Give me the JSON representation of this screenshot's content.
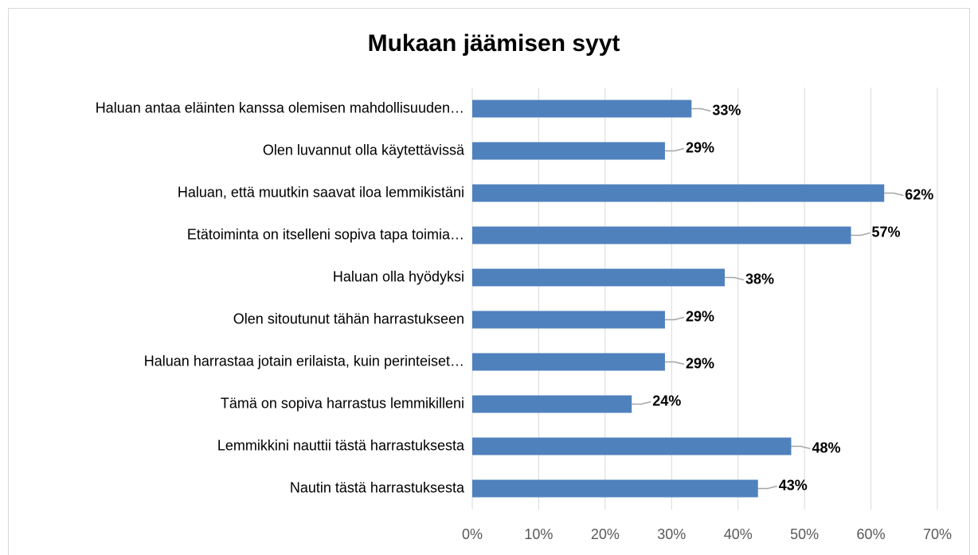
{
  "chart_data": {
    "type": "bar",
    "orientation": "horizontal",
    "title": "Mukaan jäämisen syyt",
    "categories": [
      "Haluan antaa eläinten kanssa olemisen mahdollisuuden…",
      "Olen luvannut olla käytettävissä",
      "Haluan, että muutkin saavat iloa lemmikistäni",
      "Etätoiminta on itselleni sopiva tapa toimia…",
      "Haluan olla hyödyksi",
      "Olen sitoutunut tähän harrastukseen",
      "Haluan harrastaa jotain erilaista, kuin perinteiset…",
      "Tämä on sopiva harrastus lemmikilleni",
      "Lemmikkini nauttii tästä harrastuksesta",
      "Nautin tästä harrastuksesta"
    ],
    "values": [
      33,
      29,
      62,
      57,
      38,
      29,
      29,
      24,
      48,
      43
    ],
    "value_labels": [
      "33%",
      "29%",
      "62%",
      "57%",
      "38%",
      "29%",
      "29%",
      "24%",
      "48%",
      "43%"
    ],
    "color": "#4f81bd",
    "xlim": [
      0,
      70
    ],
    "xticks": [
      {
        "value": 0,
        "label": "0%"
      },
      {
        "value": 10,
        "label": "10%"
      },
      {
        "value": 20,
        "label": "20%"
      },
      {
        "value": 30,
        "label": "30%"
      },
      {
        "value": 40,
        "label": "40%"
      },
      {
        "value": 50,
        "label": "50%"
      },
      {
        "value": 60,
        "label": "60%"
      },
      {
        "value": 70,
        "label": "70%"
      }
    ],
    "grid": true
  }
}
